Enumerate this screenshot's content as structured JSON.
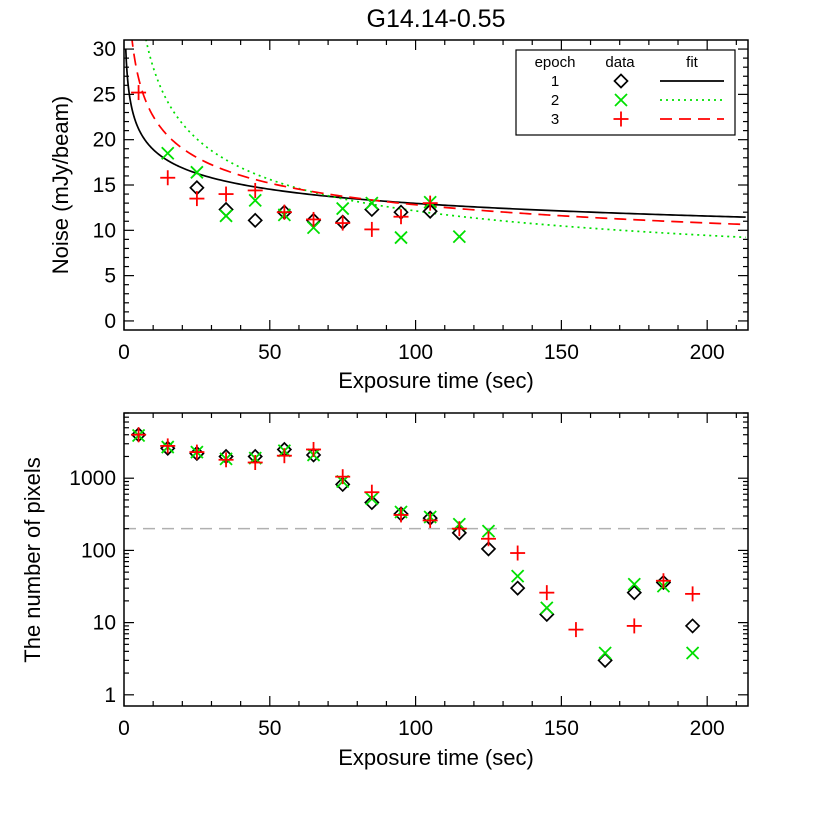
{
  "chart_data": [
    {
      "type": "scatter",
      "title": "G14.14-0.55",
      "xlabel": "Exposure time (sec)",
      "ylabel": "Noise (mJy/beam)",
      "xlim": [
        0,
        214
      ],
      "ylim": [
        -1,
        31
      ],
      "xticks": [
        0,
        50,
        100,
        150,
        200
      ],
      "yticks": [
        0,
        5,
        10,
        15,
        20,
        25,
        30
      ],
      "legend": {
        "position": "top-right",
        "headers": [
          "epoch",
          "data",
          "fit"
        ],
        "entries": [
          "1",
          "2",
          "3"
        ]
      },
      "series": [
        {
          "name": "1",
          "marker": "diamond",
          "color": "#000000",
          "points": [
            [
              25,
              14.7
            ],
            [
              35,
              12.3
            ],
            [
              45,
              11.1
            ],
            [
              55,
              12.0
            ],
            [
              65,
              11.1
            ],
            [
              75,
              10.9
            ],
            [
              85,
              12.3
            ],
            [
              95,
              12.0
            ],
            [
              105,
              12.1
            ]
          ],
          "fit": {
            "style": "solid",
            "a": 27.6,
            "b": 0.164
          }
        },
        {
          "name": "2",
          "marker": "x",
          "color": "#00e000",
          "points": [
            [
              15,
              18.5
            ],
            [
              25,
              16.4
            ],
            [
              35,
              11.6
            ],
            [
              45,
              13.3
            ],
            [
              55,
              11.7
            ],
            [
              65,
              10.3
            ],
            [
              75,
              12.4
            ],
            [
              85,
              13.0
            ],
            [
              95,
              9.2
            ],
            [
              105,
              13.1
            ],
            [
              115,
              9.3
            ]
          ],
          "fit": {
            "style": "dotted",
            "a": 64.6,
            "b": 0.363
          }
        },
        {
          "name": "3",
          "marker": "plus",
          "color": "#ff0000",
          "points": [
            [
              5,
              25.2
            ],
            [
              15,
              15.8
            ],
            [
              25,
              13.5
            ],
            [
              35,
              14.0
            ],
            [
              45,
              14.4
            ],
            [
              55,
              12.0
            ],
            [
              65,
              11.2
            ],
            [
              75,
              10.8
            ],
            [
              85,
              10.1
            ],
            [
              95,
              11.5
            ],
            [
              105,
              13.0
            ]
          ],
          "fit": {
            "style": "dashed",
            "a": 39.8,
            "b": 0.246
          }
        }
      ]
    },
    {
      "type": "scatter",
      "title": "",
      "xlabel": "Exposure time (sec)",
      "ylabel": "The number of pixels",
      "xlim": [
        0,
        214
      ],
      "ylim": [
        0.7,
        8000
      ],
      "yscale": "log",
      "xticks": [
        0,
        50,
        100,
        150,
        200
      ],
      "yticks": [
        1,
        10,
        100,
        1000
      ],
      "ytick_labels": [
        "1",
        "10",
        "100",
        "1000"
      ],
      "reference_line": {
        "y": 200,
        "color": "#b0b0b0",
        "style": "dashed"
      },
      "series": [
        {
          "name": "1",
          "marker": "diamond",
          "color": "#000000",
          "points": [
            [
              5,
              4000
            ],
            [
              15,
              2600
            ],
            [
              25,
              2200
            ],
            [
              35,
              2000
            ],
            [
              45,
              2000
            ],
            [
              55,
              2500
            ],
            [
              65,
              2100
            ],
            [
              75,
              820
            ],
            [
              85,
              460
            ],
            [
              95,
              320
            ],
            [
              105,
              280
            ],
            [
              115,
              175
            ],
            [
              125,
              105
            ],
            [
              135,
              30
            ],
            [
              145,
              13
            ],
            [
              165,
              3
            ],
            [
              175,
              26
            ],
            [
              185,
              36
            ],
            [
              195,
              9
            ]
          ]
        },
        {
          "name": "2",
          "marker": "x",
          "color": "#00e000",
          "points": [
            [
              5,
              3900
            ],
            [
              15,
              2700
            ],
            [
              25,
              2300
            ],
            [
              35,
              1850
            ],
            [
              45,
              1900
            ],
            [
              55,
              2400
            ],
            [
              65,
              2100
            ],
            [
              75,
              900
            ],
            [
              85,
              520
            ],
            [
              95,
              340
            ],
            [
              105,
              290
            ],
            [
              115,
              230
            ],
            [
              125,
              185
            ],
            [
              135,
              44
            ],
            [
              145,
              16
            ],
            [
              165,
              3.8
            ],
            [
              175,
              34
            ],
            [
              185,
              32
            ],
            [
              195,
              3.8
            ]
          ]
        },
        {
          "name": "3",
          "marker": "plus",
          "color": "#ff0000",
          "points": [
            [
              5,
              4000
            ],
            [
              15,
              2800
            ],
            [
              25,
              2300
            ],
            [
              35,
              1800
            ],
            [
              45,
              1650
            ],
            [
              55,
              2050
            ],
            [
              65,
              2500
            ],
            [
              75,
              1050
            ],
            [
              85,
              640
            ],
            [
              95,
              310
            ],
            [
              105,
              260
            ],
            [
              115,
              200
            ],
            [
              125,
              145
            ],
            [
              135,
              92
            ],
            [
              145,
              26
            ],
            [
              155,
              8
            ],
            [
              175,
              9
            ],
            [
              185,
              38
            ],
            [
              195,
              25
            ]
          ]
        }
      ]
    }
  ]
}
